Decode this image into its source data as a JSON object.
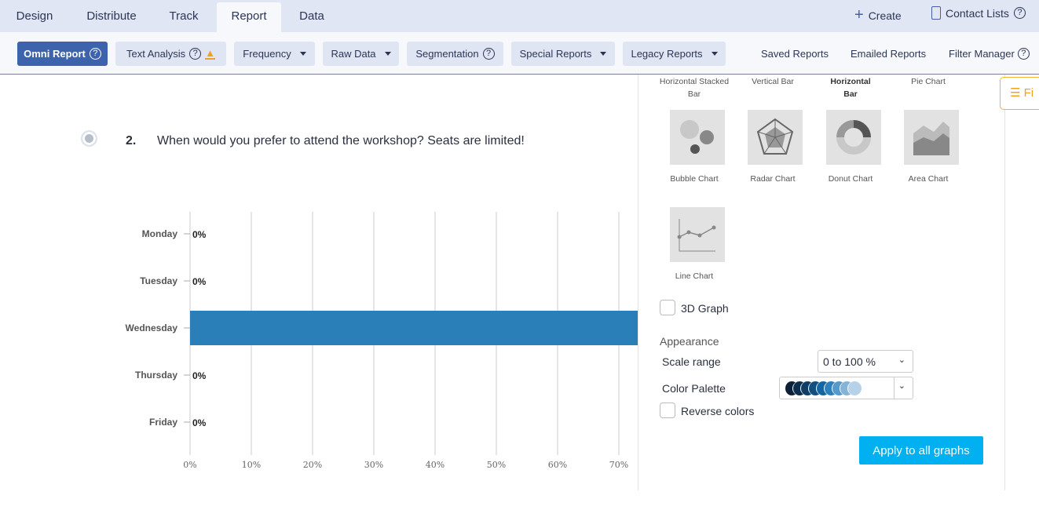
{
  "tabs": [
    "Design",
    "Distribute",
    "Track",
    "Report",
    "Data"
  ],
  "top_links": {
    "create": "Create",
    "contact_lists": "Contact Lists"
  },
  "toolbar": {
    "omni": "Omni Report",
    "text_analysis": "Text Analysis",
    "frequency": "Frequency",
    "raw_data": "Raw Data",
    "segmentation": "Segmentation",
    "special": "Special Reports",
    "legacy": "Legacy Reports",
    "saved": "Saved Reports",
    "emailed": "Emailed Reports",
    "filter_manager": "Filter Manager",
    "help": "?"
  },
  "question": {
    "number": "2.",
    "text": "When would you prefer to attend the workshop? Seats are limited!"
  },
  "chart_data": {
    "type": "bar",
    "orientation": "horizontal",
    "categories": [
      "Monday",
      "Tuesday",
      "Wednesday",
      "Thursday",
      "Friday"
    ],
    "values": [
      0,
      0,
      100,
      0,
      0
    ],
    "labels": [
      "0%",
      "0%",
      "",
      "0%",
      "0%"
    ],
    "xticks": [
      "0%",
      "10%",
      "20%",
      "30%",
      "40%",
      "50%",
      "60%",
      "70%"
    ],
    "xlim": [
      0,
      100
    ],
    "color": "#2a7fb8"
  },
  "chart_types": {
    "hstacked": "Horizontal Stacked Bar",
    "vbar": "Vertical Bar",
    "hbar": "Horizontal Bar",
    "pie": "Pie Chart",
    "bubble": "Bubble Chart",
    "radar": "Radar Chart",
    "donut": "Donut Chart",
    "area": "Area Chart",
    "line": "Line Chart"
  },
  "options": {
    "graph3d": "3D Graph",
    "appearance": "Appearance",
    "scale_label": "Scale range",
    "scale_value": "0 to 100 %",
    "palette_label": "Color Palette",
    "reverse": "Reverse colors",
    "apply": "Apply to all graphs",
    "filter": "Fi"
  },
  "palette": [
    "#0b2238",
    "#0d2f4f",
    "#0f3d66",
    "#11507f",
    "#1466a0",
    "#2f7fbb",
    "#5899c9",
    "#86b4d9",
    "#b6d2ea"
  ]
}
